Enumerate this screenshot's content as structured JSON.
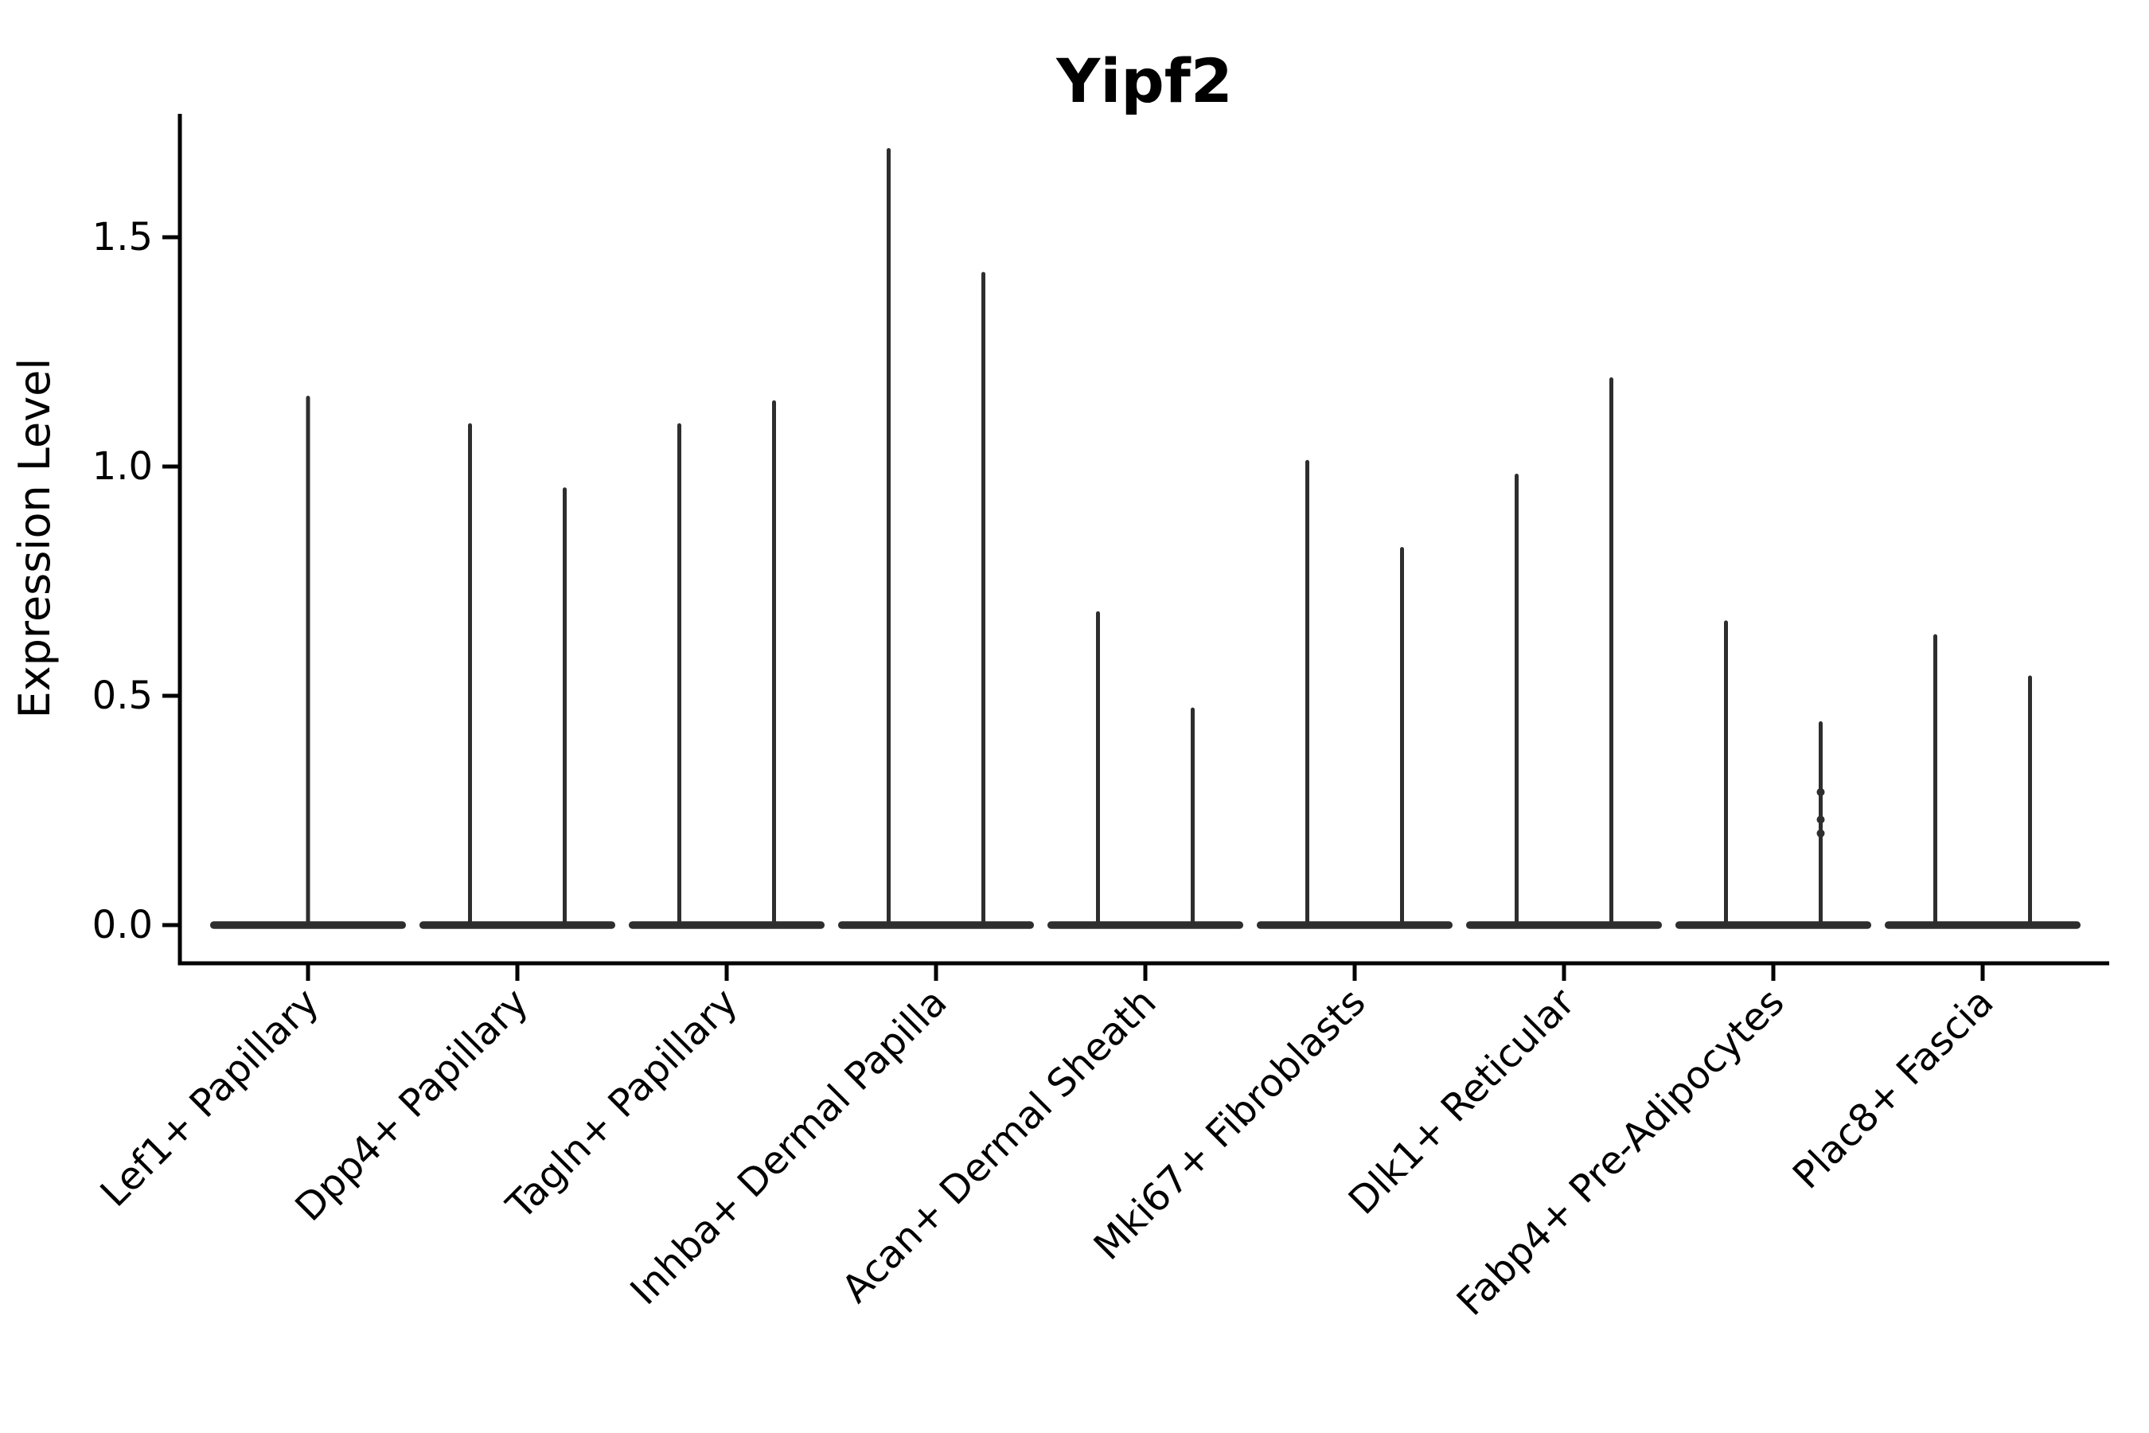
{
  "figure": {
    "title": "Yipf2",
    "y_axis": {
      "label": "Expression Level",
      "tick_labels": [
        "0.0",
        "0.5",
        "1.0",
        "1.5"
      ]
    },
    "x_axis": {
      "tick_labels": [
        "Lef1+ Papillary",
        "Dpp4+ Papillary",
        "Tagln+ Papillary",
        "Inhba+ Dermal Papilla",
        "Acan+ Dermal Sheath",
        "Mki67+ Fibroblasts",
        "Dlk1+ Reticular",
        "Fabp4+ Pre-Adipocytes",
        "Plac8+ Fascia"
      ]
    }
  },
  "chart_data": {
    "type": "violin",
    "title": "Yipf2",
    "xlabel": "",
    "ylabel": "Expression Level",
    "ylim": [
      -0.08,
      1.77
    ],
    "yticks": [
      0.0,
      0.5,
      1.0,
      1.5
    ],
    "ytick_labels": [
      "0.0",
      "0.5",
      "1.0",
      "1.5"
    ],
    "grid": false,
    "legend": null,
    "baseline_value": 0.0,
    "categories": [
      "Lef1+ Papillary",
      "Dpp4+ Papillary",
      "Tagln+ Papillary",
      "Inhba+ Dermal Papilla",
      "Acan+ Dermal Sheath",
      "Mki67+ Fibroblasts",
      "Dlk1+ Reticular",
      "Fabp4+ Pre-Adipocytes",
      "Plac8+ Fascia"
    ],
    "violins": [
      {
        "category": "Lef1+ Papillary",
        "spikes": [
          {
            "position": "center",
            "max": 1.15
          }
        ]
      },
      {
        "category": "Dpp4+ Papillary",
        "spikes": [
          {
            "position": "left",
            "max": 1.09
          },
          {
            "position": "right",
            "max": 0.95
          }
        ]
      },
      {
        "category": "Tagln+ Papillary",
        "spikes": [
          {
            "position": "left",
            "max": 1.09
          },
          {
            "position": "right",
            "max": 1.14
          }
        ]
      },
      {
        "category": "Inhba+ Dermal Papilla",
        "spikes": [
          {
            "position": "left",
            "max": 1.69
          },
          {
            "position": "right",
            "max": 1.42
          }
        ]
      },
      {
        "category": "Acan+ Dermal Sheath",
        "spikes": [
          {
            "position": "left",
            "max": 0.68
          },
          {
            "position": "right",
            "max": 0.47
          }
        ]
      },
      {
        "category": "Mki67+ Fibroblasts",
        "spikes": [
          {
            "position": "left",
            "max": 1.01
          },
          {
            "position": "right",
            "max": 0.82
          }
        ]
      },
      {
        "category": "Dlk1+ Reticular",
        "spikes": [
          {
            "position": "left",
            "max": 0.98
          },
          {
            "position": "right",
            "max": 1.19
          }
        ]
      },
      {
        "category": "Fabp4+ Pre-Adipocytes",
        "spikes": [
          {
            "position": "left",
            "max": 0.66
          },
          {
            "position": "right",
            "max": 0.44,
            "dots": [
              0.29,
              0.23,
              0.2
            ]
          }
        ]
      },
      {
        "category": "Plac8+ Fascia",
        "spikes": [
          {
            "position": "left",
            "max": 0.63
          },
          {
            "position": "right",
            "max": 0.54
          }
        ]
      }
    ],
    "colors": {
      "violin": "#2e2e2e",
      "axis": "#000000",
      "text": "#000000",
      "background": "#ffffff"
    }
  }
}
